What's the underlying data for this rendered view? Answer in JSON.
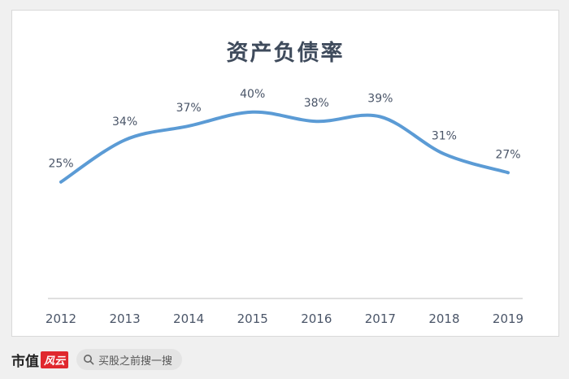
{
  "footer": {
    "logo_text": "市值",
    "logo_mark": "风云",
    "search_text": "买股之前搜一搜"
  },
  "chart_data": {
    "type": "line",
    "title": "资产负债率",
    "xlabel": "",
    "ylabel": "",
    "categories": [
      "2012",
      "2013",
      "2014",
      "2015",
      "2016",
      "2017",
      "2018",
      "2019"
    ],
    "series": [
      {
        "values": [
          25,
          34,
          37,
          40,
          38,
          39,
          31,
          27
        ],
        "labels": [
          "25%",
          "34%",
          "37%",
          "40%",
          "38%",
          "39%",
          "31%",
          "27%"
        ]
      }
    ],
    "ylim": [
      0,
      52
    ],
    "grid": false,
    "line_color": "#5b9bd5",
    "axis_color": "#bfbfbf",
    "label_color": "#4a5568"
  }
}
